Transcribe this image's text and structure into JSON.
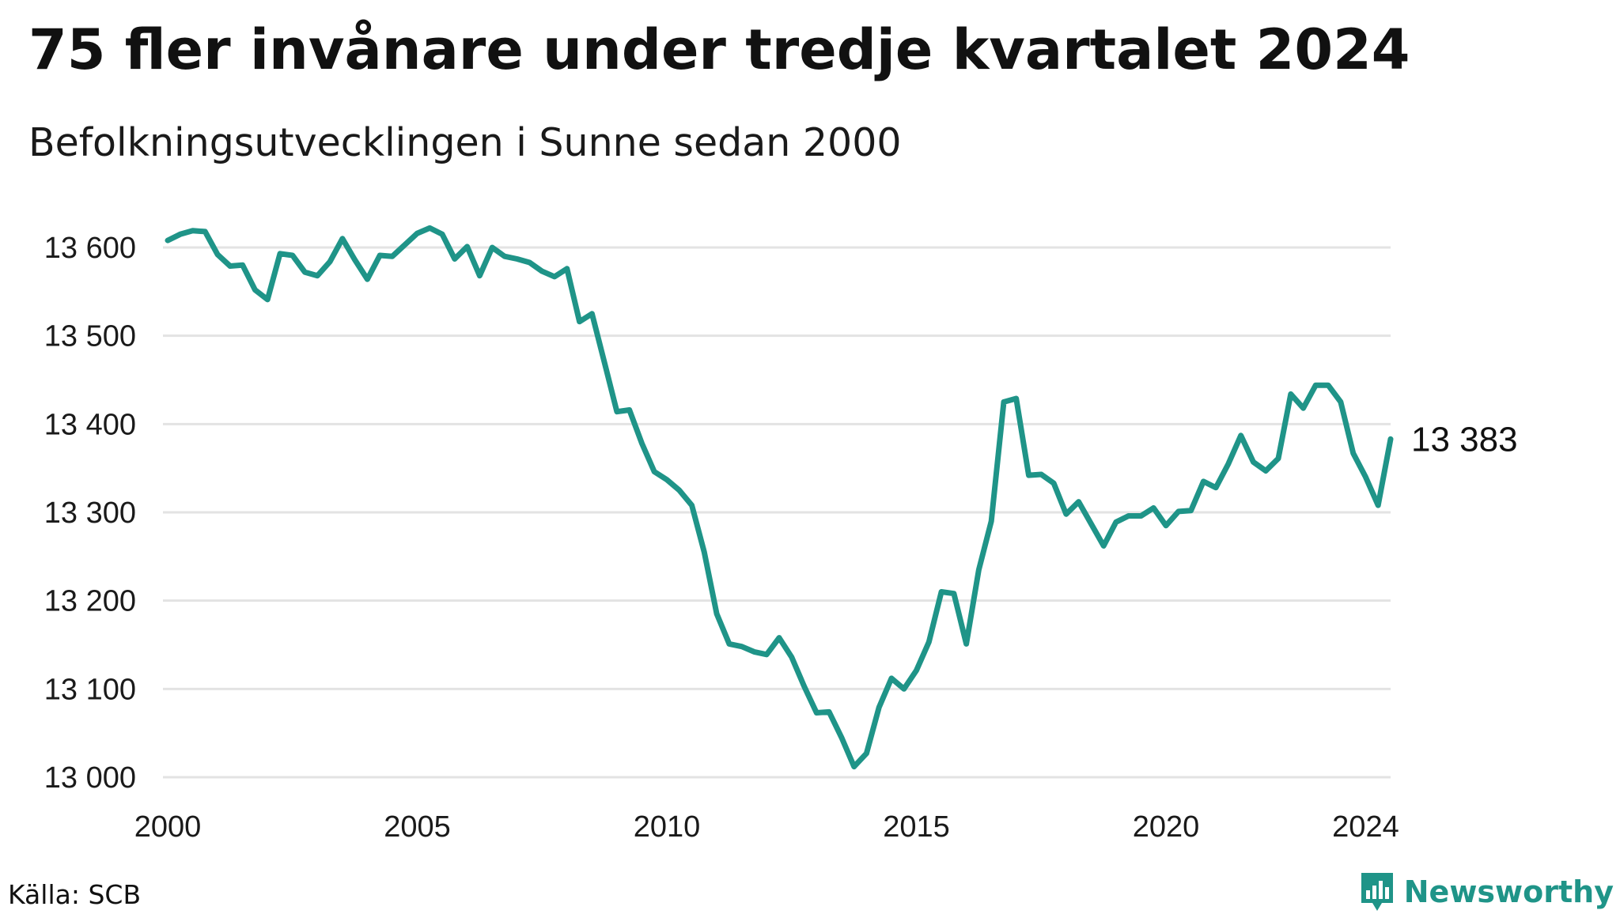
{
  "header": {
    "title": "75 fler invånare under tredje kvartalet 2024",
    "subtitle": "Befolkningsutvecklingen i Sunne sedan 2000"
  },
  "footer": {
    "source": "Källa: SCB",
    "brand": "Newsworthy",
    "brand_icon": "bar-chart-speech-bubble-icon"
  },
  "colors": {
    "line": "#1f9488",
    "grid": "#e3e3e3",
    "brand": "#1f9488"
  },
  "chart_data": {
    "type": "line",
    "title": "75 fler invånare under tredje kvartalet 2024",
    "subtitle": "Befolkningsutvecklingen i Sunne sedan 2000",
    "xlabel": "",
    "ylabel": "",
    "x_ticks": [
      "2000",
      "2005",
      "2010",
      "2015",
      "2020",
      "2024"
    ],
    "y_ticks": [
      "13 000",
      "13 100",
      "13 200",
      "13 300",
      "13 400",
      "13 500",
      "13 600"
    ],
    "ylim": [
      13000,
      13600
    ],
    "grid": true,
    "end_label": "13 383",
    "x_unit": "year (quarterly)",
    "x_start": 2000,
    "x_step": 0.25,
    "series": [
      {
        "values": [
          13608,
          13615,
          13619,
          13618,
          13592,
          13579,
          13580,
          13552,
          13541,
          13593,
          13591,
          13572,
          13568,
          13584,
          13610,
          13586,
          13564,
          13591,
          13590,
          13603,
          13616,
          13622,
          13615,
          13587,
          13601,
          13568,
          13600,
          13590,
          13587,
          13583,
          13573,
          13567,
          13576,
          13516,
          13525,
          13470,
          13414,
          13416,
          13378,
          13346,
          13337,
          13325,
          13308,
          13255,
          13185,
          13151,
          13148,
          13142,
          13139,
          13158,
          13136,
          13103,
          13073,
          13074,
          13045,
          13012,
          13027,
          13079,
          13112,
          13100,
          13121,
          13153,
          13210,
          13208,
          13151,
          13235,
          13290,
          13425,
          13429,
          13342,
          13343,
          13333,
          13298,
          13312,
          13287,
          13262,
          13289,
          13296,
          13296,
          13305,
          13285,
          13301,
          13302,
          13335,
          13328,
          13355,
          13387,
          13357,
          13347,
          13361,
          13434,
          13418,
          13444,
          13444,
          13425,
          13367,
          13340,
          13308,
          13383
        ]
      }
    ]
  }
}
